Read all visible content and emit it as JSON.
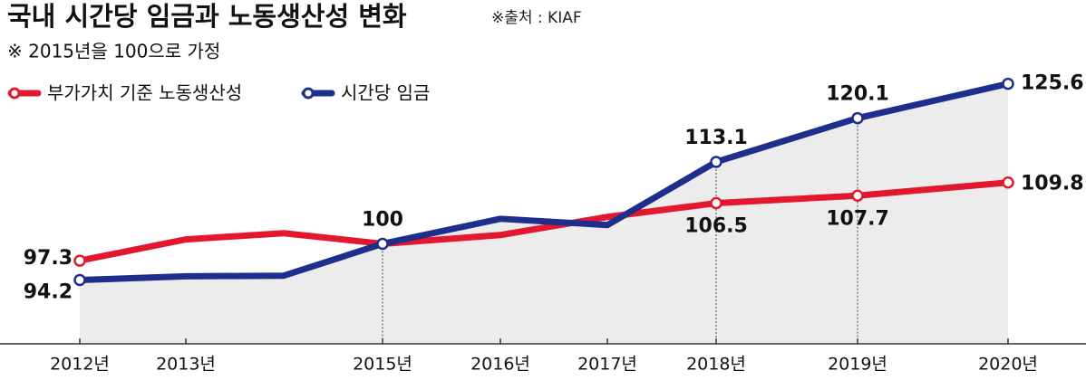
{
  "chart_data": {
    "type": "line",
    "title": "국내 시간당 임금과 노동생산성 변화",
    "source": "※출처 : KIAF",
    "subtitle": "※ 2015년을 100으로 가정",
    "categories": [
      "2012년",
      "2013년",
      null,
      "2015년",
      "2016년",
      "2017년",
      "2018년",
      "2019년",
      "2020년"
    ],
    "series": [
      {
        "name": "부가가치 기준 노동생산성",
        "color": "#e3172d",
        "values": [
          97.3,
          100.7,
          101.7,
          100,
          101.4,
          104.3,
          106.5,
          107.7,
          109.8
        ],
        "value_labels": [
          "97.3",
          null,
          null,
          null,
          null,
          null,
          "106.5",
          "107.7",
          "109.8"
        ]
      },
      {
        "name": "시간당 임금",
        "color": "#1f2e8c",
        "values": [
          94.2,
          94.8,
          94.9,
          100,
          104.0,
          103.0,
          113.1,
          120.1,
          125.6
        ],
        "value_labels": [
          "94.2",
          null,
          null,
          "100",
          null,
          null,
          "113.1",
          "120.1",
          "125.6"
        ]
      }
    ],
    "ylim": [
      84,
      139
    ]
  }
}
